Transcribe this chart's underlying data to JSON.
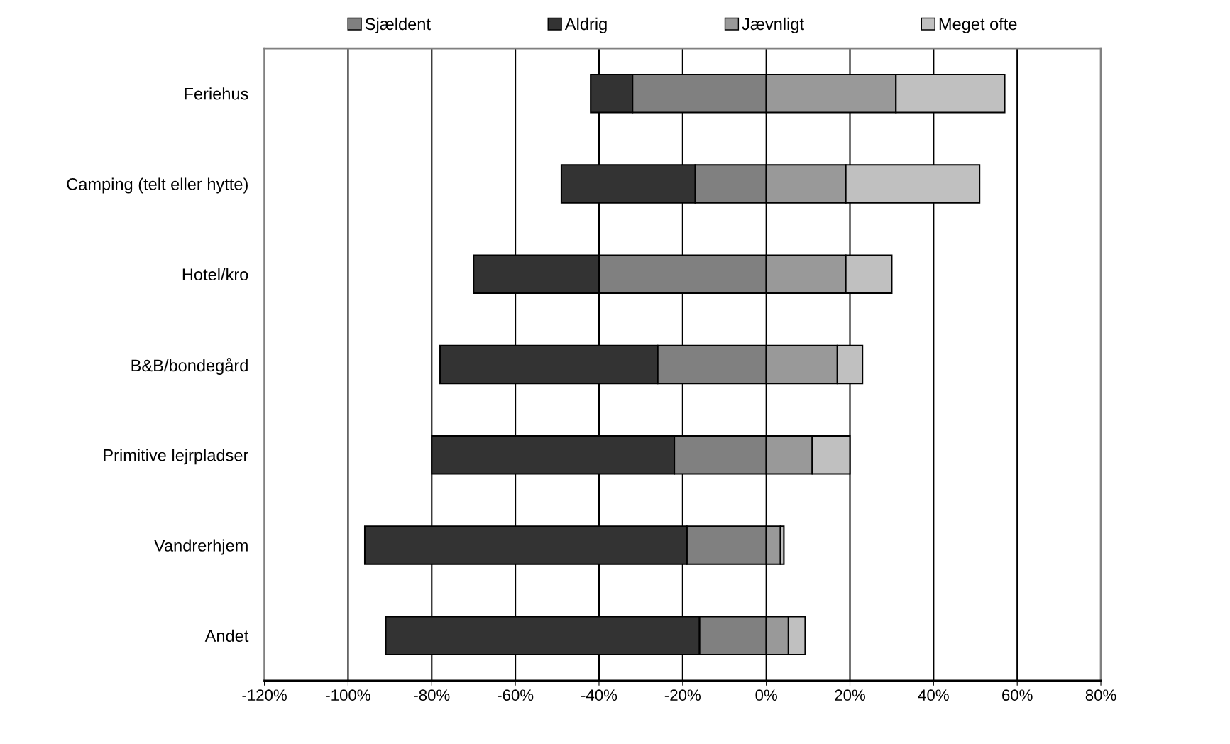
{
  "chart_data": {
    "type": "bar",
    "orientation": "horizontal",
    "stacked": true,
    "categories": [
      "Feriehus",
      "Camping (telt eller hytte)",
      "Hotel/kro",
      "B&B/bondegård",
      "Primitive lejrpladser",
      "Vandrerhjem",
      "Andet"
    ],
    "series": [
      {
        "name": "Sjældent",
        "color": "#808080",
        "values": [
          -32,
          -17,
          -40,
          -26,
          -22,
          -19,
          -16
        ]
      },
      {
        "name": "Aldrig",
        "color": "#333333",
        "values": [
          -10,
          -32,
          -30,
          -52,
          -58,
          -77,
          -75
        ]
      },
      {
        "name": "Jævnligt",
        "color": "#999999",
        "values": [
          31,
          19,
          19,
          17,
          11,
          3.4,
          5.3
        ]
      },
      {
        "name": "Meget ofte",
        "color": "#c0c0c0",
        "values": [
          26,
          32,
          11,
          6,
          9,
          0.8,
          4
        ]
      }
    ],
    "xlim": [
      -120,
      80
    ],
    "xticks": [
      {
        "value": -120,
        "label": "-120%"
      },
      {
        "value": -100,
        "label": "-100%"
      },
      {
        "value": -80,
        "label": "-80%"
      },
      {
        "value": -60,
        "label": "-60%"
      },
      {
        "value": -40,
        "label": "-40%"
      },
      {
        "value": -20,
        "label": "-20%"
      },
      {
        "value": 0,
        "label": "0%"
      },
      {
        "value": 20,
        "label": "20%"
      },
      {
        "value": 40,
        "label": "40%"
      },
      {
        "value": 60,
        "label": "60%"
      },
      {
        "value": 80,
        "label": "80%"
      }
    ],
    "grid": "x",
    "legend": "top"
  }
}
